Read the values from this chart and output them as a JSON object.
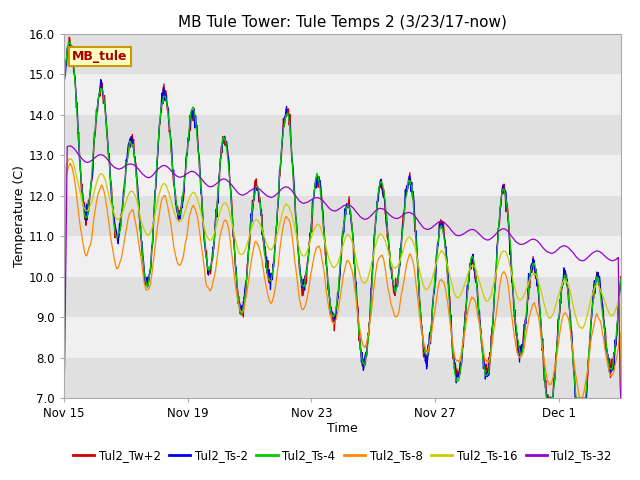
{
  "title": "MB Tule Tower: Tule Temps 2 (3/23/17-now)",
  "xlabel": "Time",
  "ylabel": "Temperature (C)",
  "ylim": [
    7.0,
    16.0
  ],
  "yticks": [
    7.0,
    8.0,
    9.0,
    10.0,
    11.0,
    12.0,
    13.0,
    14.0,
    15.0,
    16.0
  ],
  "xtick_labels": [
    "Nov 15",
    "Nov 19",
    "Nov 23",
    "Nov 27",
    "Dec 1"
  ],
  "xtick_positions": [
    0,
    4,
    8,
    12,
    16
  ],
  "band_color_dark": "#e0e0e0",
  "band_color_light": "#f0f0f0",
  "legend_label": "MB_tule",
  "legend_box_facecolor": "#ffffc0",
  "legend_box_edgecolor": "#cc9900",
  "series_colors": [
    "#cc0000",
    "#0000ee",
    "#00cc00",
    "#ff8800",
    "#cccc00",
    "#9900cc"
  ],
  "series_labels": [
    "Tul2_Tw+2",
    "Tul2_Ts-2",
    "Tul2_Ts-4",
    "Tul2_Ts-8",
    "Tul2_Ts-16",
    "Tul2_Ts-32"
  ],
  "total_days": 18,
  "points_per_day": 48,
  "title_fontsize": 11,
  "axis_fontsize": 9,
  "tick_fontsize": 8.5,
  "legend_fontsize": 8.5
}
